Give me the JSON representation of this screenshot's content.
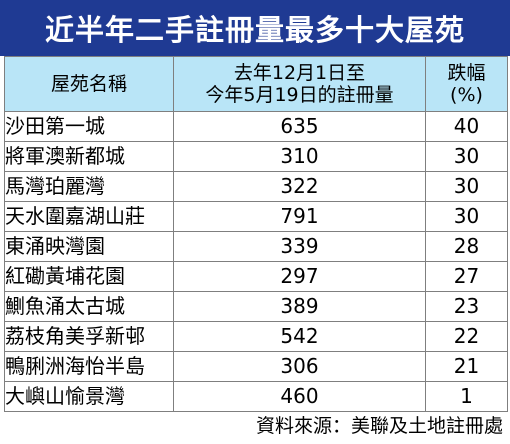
{
  "title": "近半年二手註冊量最多十大屋苑",
  "header": {
    "name": "屋苑名稱",
    "volume_line1": "去年12月1日至",
    "volume_line2": "今年5月19日的註冊量",
    "drop_line1": "跌幅",
    "drop_line2": "(%)"
  },
  "rows": [
    {
      "name": "沙田第一城",
      "volume": "635",
      "drop": "40"
    },
    {
      "name": "將軍澳新都城",
      "volume": "310",
      "drop": "30"
    },
    {
      "name": "馬灣珀麗灣",
      "volume": "322",
      "drop": "30"
    },
    {
      "name": "天水圍嘉湖山莊",
      "volume": "791",
      "drop": "30"
    },
    {
      "name": "東涌映灣園",
      "volume": "339",
      "drop": "28"
    },
    {
      "name": "紅磡黃埔花園",
      "volume": "297",
      "drop": "27"
    },
    {
      "name": "鰂魚涌太古城",
      "volume": "389",
      "drop": "23"
    },
    {
      "name": "荔枝角美孚新邨",
      "volume": "542",
      "drop": "22"
    },
    {
      "name": "鴨脷洲海怡半島",
      "volume": "306",
      "drop": "21"
    },
    {
      "name": "大嶼山愉景灣",
      "volume": "460",
      "drop": "1"
    }
  ],
  "source": "資料來源：美聯及土地註冊處",
  "colors": {
    "title_bg": "#1f3a93",
    "header_bg": "#b9e5f7"
  }
}
